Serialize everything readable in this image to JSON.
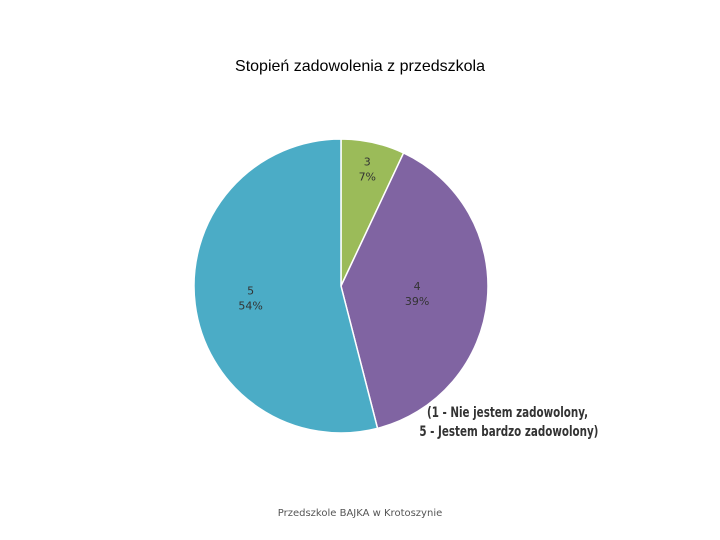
{
  "chart_data": {
    "type": "pie",
    "title": "Stopień zadowolenia z przedszkola",
    "slices": [
      {
        "label": "3",
        "percent_label": "7%",
        "value": 7,
        "color": "#9BBB59"
      },
      {
        "label": "4",
        "percent_label": "39%",
        "value": 39,
        "color": "#8064A2"
      },
      {
        "label": "5",
        "percent_label": "54%",
        "value": 54,
        "color": "#4BACC6"
      }
    ],
    "start_angle_deg": 0,
    "direction": "clockwise",
    "legend": "none"
  },
  "note": {
    "line1": "(1 - Nie jestem zadowolony,",
    "line2": "5 - Jestem bardzo zadowolony)"
  },
  "footer": "Przedszkole BAJKA w Krotoszynie"
}
